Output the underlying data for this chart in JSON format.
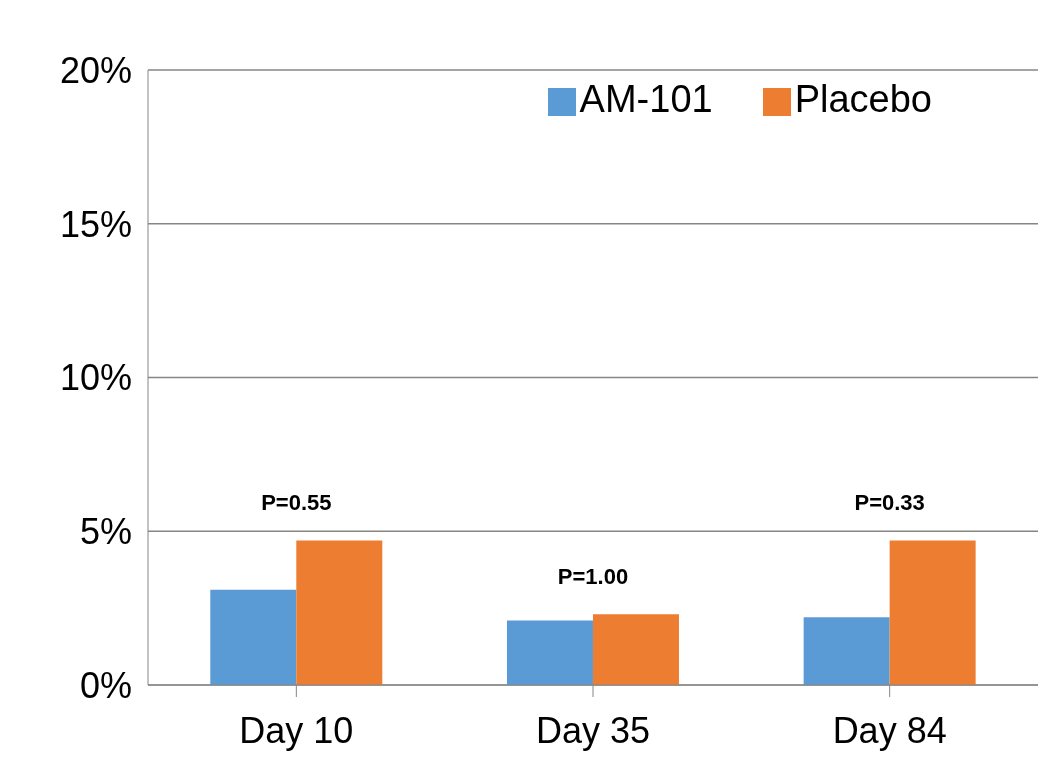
{
  "chart_data": {
    "type": "bar",
    "categories": [
      "Day 10",
      "Day 35",
      "Day 84"
    ],
    "series": [
      {
        "name": "AM-101",
        "color": "#5b9bd5",
        "values": [
          3.1,
          2.1,
          2.2
        ]
      },
      {
        "name": "Placebo",
        "color": "#ed7d31",
        "values": [
          4.7,
          2.3,
          4.7
        ]
      }
    ],
    "ylim": [
      0,
      20
    ],
    "yticks": [
      {
        "value": 0,
        "label": "0%"
      },
      {
        "value": 5,
        "label": "5%"
      },
      {
        "value": 10,
        "label": "10%"
      },
      {
        "value": 15,
        "label": "15%"
      },
      {
        "value": 20,
        "label": "20%"
      }
    ],
    "grid": "y",
    "legend": "top right",
    "annotations": [
      {
        "text": "P=0.55",
        "x": "Day 10",
        "y": 4.7
      },
      {
        "text": "P=1.00",
        "x": "Day 35",
        "y": 2.3
      },
      {
        "text": "P=0.33",
        "x": "Day 84",
        "y": 4.7
      }
    ]
  }
}
